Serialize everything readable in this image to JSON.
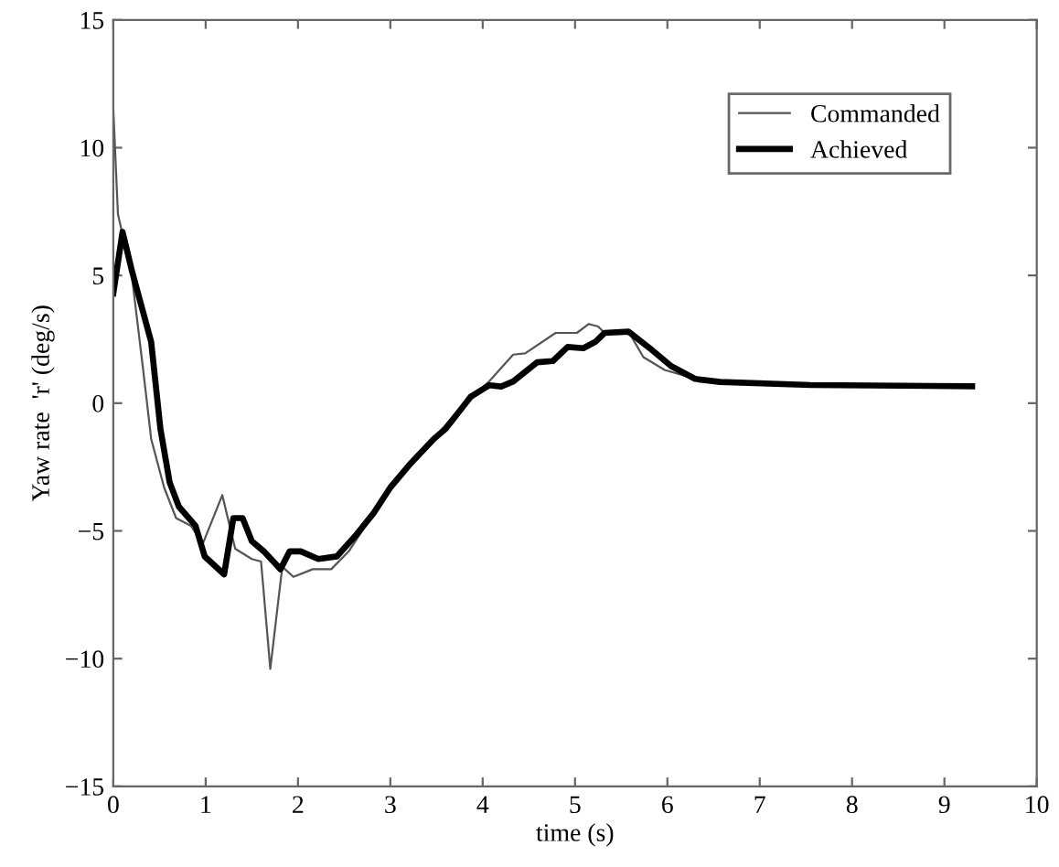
{
  "chart_data": {
    "type": "line",
    "xlabel": "time (s)",
    "ylabel": "Yaw rate  'r' (deg/s)",
    "xlim": [
      0,
      10
    ],
    "ylim": [
      -15,
      15
    ],
    "xticks": [
      0,
      1,
      2,
      3,
      4,
      5,
      6,
      7,
      8,
      9,
      10
    ],
    "yticks": [
      -15,
      -10,
      -5,
      0,
      5,
      10,
      15
    ],
    "grid": false,
    "legend": "top right",
    "marker": "none",
    "line_style": "solid",
    "series": [
      {
        "name": "Commanded",
        "color": "#555555",
        "x": [
          0,
          0.05,
          0.2,
          0.32,
          0.41,
          0.55,
          0.68,
          0.84,
          0.97,
          1.18,
          1.32,
          1.5,
          1.6,
          1.7,
          1.83,
          1.95,
          2.16,
          2.36,
          2.55,
          2.82,
          3.0,
          3.21,
          3.47,
          3.74,
          4.07,
          4.33,
          4.46,
          4.79,
          5.02,
          5.15,
          5.25,
          5.32,
          5.58,
          5.74,
          5.97,
          6.3,
          6.57,
          7.55,
          9.3
        ],
        "values": [
          11.5,
          7.4,
          5,
          1.4,
          -1.4,
          -3.3,
          -4.5,
          -4.8,
          -5.5,
          -3.6,
          -5.7,
          -6.1,
          -6.2,
          -10.4,
          -6.4,
          -6.8,
          -6.5,
          -6.5,
          -5.8,
          -4.3,
          -3.3,
          -2.4,
          -1.4,
          -0.25,
          0.85,
          1.9,
          1.95,
          2.75,
          2.75,
          3.1,
          3.0,
          2.75,
          2.8,
          1.8,
          1.3,
          0.95,
          0.83,
          0.71,
          0.66
        ]
      },
      {
        "name": "Achieved",
        "color": "#000000",
        "x": [
          0,
          0.1,
          0.2,
          0.41,
          0.51,
          0.61,
          0.71,
          0.89,
          0.99,
          1.2,
          1.3,
          1.4,
          1.5,
          1.63,
          1.81,
          1.91,
          2.03,
          2.22,
          2.42,
          2.62,
          2.82,
          3.0,
          3.21,
          3.47,
          3.6,
          3.87,
          4.07,
          4.2,
          4.33,
          4.59,
          4.76,
          4.92,
          5.09,
          5.22,
          5.32,
          5.58,
          5.81,
          6.04,
          6.3,
          6.57,
          7.55,
          9.3
        ],
        "values": [
          4.3,
          6.7,
          5.2,
          2.4,
          -1,
          -3.1,
          -4.05,
          -4.8,
          -6,
          -6.7,
          -4.5,
          -4.5,
          -5.4,
          -5.8,
          -6.5,
          -5.8,
          -5.8,
          -6.1,
          -6.0,
          -5.2,
          -4.3,
          -3.3,
          -2.4,
          -1.4,
          -1.0,
          0.25,
          0.7,
          0.65,
          0.85,
          1.6,
          1.65,
          2.2,
          2.15,
          2.4,
          2.75,
          2.8,
          2.15,
          1.45,
          0.95,
          0.83,
          0.71,
          0.66
        ]
      }
    ]
  }
}
